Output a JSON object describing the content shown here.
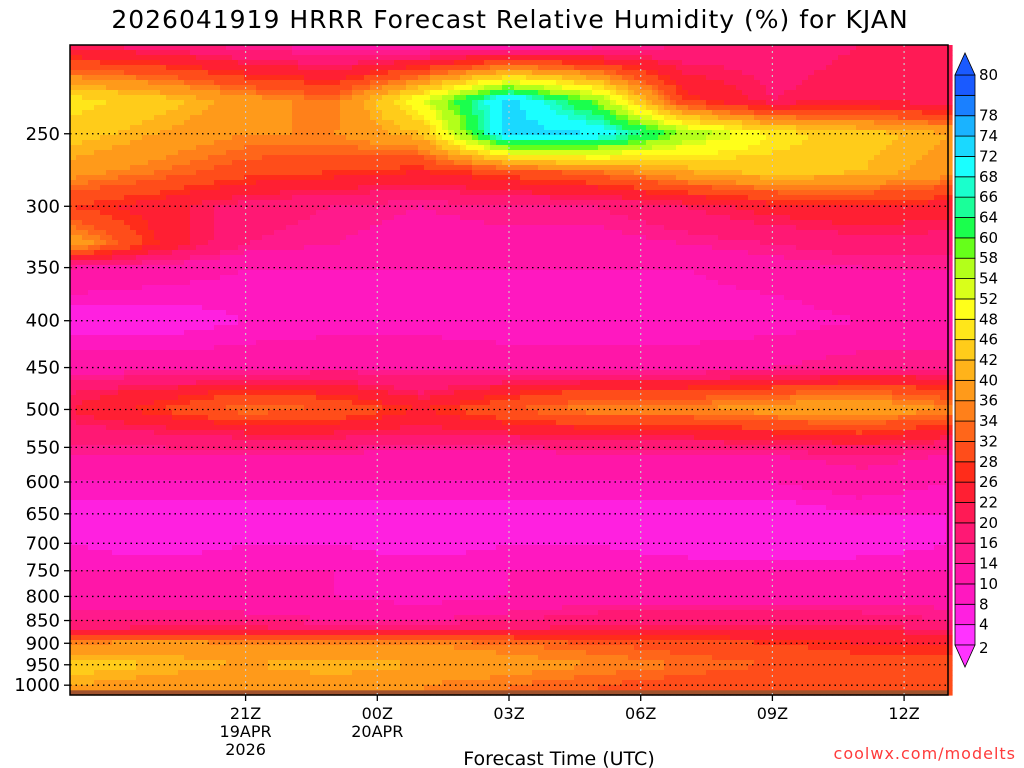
{
  "header": {
    "title": "2026041919 HRRR Forecast Relative Humidity (%) for KJAN"
  },
  "watermark": "coolwx.com/modelts",
  "chart_data": {
    "type": "heatmap",
    "title": "2026041919 HRRR Forecast Relative Humidity (%) for KJAN",
    "xlabel": "Forecast Time (UTC)",
    "ylabel": "",
    "x_unit": "hours after 2026041919 (UTC)",
    "xlim": [
      -2,
      18
    ],
    "y_unit": "hPa",
    "ylim": [
      1025,
      200
    ],
    "y_scale": "log",
    "grid": true,
    "x_ticks": [
      {
        "x": 2,
        "label": "21Z",
        "sub": [
          "19APR",
          "2026"
        ]
      },
      {
        "x": 5,
        "label": "00Z",
        "sub": [
          "20APR"
        ]
      },
      {
        "x": 8,
        "label": "03Z",
        "sub": []
      },
      {
        "x": 11,
        "label": "06Z",
        "sub": []
      },
      {
        "x": 14,
        "label": "09Z",
        "sub": []
      },
      {
        "x": 17,
        "label": "12Z",
        "sub": []
      }
    ],
    "y_ticks": [
      250,
      300,
      350,
      400,
      450,
      500,
      550,
      600,
      650,
      700,
      750,
      800,
      850,
      900,
      950,
      1000
    ],
    "x": [
      -2,
      0,
      2,
      4,
      6,
      8,
      10,
      12,
      14,
      16,
      18
    ],
    "y": [
      200,
      230,
      250,
      275,
      300,
      330,
      350,
      400,
      450,
      480,
      500,
      530,
      560,
      600,
      650,
      700,
      750,
      800,
      850,
      870,
      900,
      950,
      1000
    ],
    "values": [
      [
        20,
        18,
        14,
        12,
        10,
        10,
        12,
        16,
        18,
        20,
        20
      ],
      [
        48,
        44,
        38,
        34,
        52,
        74,
        58,
        28,
        20,
        22,
        20
      ],
      [
        44,
        40,
        36,
        36,
        42,
        74,
        72,
        58,
        48,
        44,
        40
      ],
      [
        38,
        34,
        30,
        28,
        26,
        30,
        34,
        40,
        44,
        42,
        38
      ],
      [
        28,
        24,
        18,
        16,
        14,
        16,
        16,
        20,
        24,
        26,
        24
      ],
      [
        40,
        26,
        16,
        14,
        12,
        12,
        12,
        14,
        16,
        18,
        18
      ],
      [
        14,
        12,
        10,
        10,
        10,
        10,
        10,
        10,
        12,
        14,
        14
      ],
      [
        6,
        6,
        8,
        8,
        8,
        8,
        8,
        8,
        8,
        10,
        10
      ],
      [
        12,
        12,
        12,
        14,
        14,
        12,
        12,
        12,
        14,
        16,
        16
      ],
      [
        20,
        24,
        28,
        26,
        20,
        26,
        30,
        30,
        32,
        34,
        30
      ],
      [
        22,
        28,
        34,
        32,
        26,
        32,
        36,
        36,
        38,
        40,
        36
      ],
      [
        18,
        20,
        22,
        22,
        20,
        22,
        24,
        24,
        26,
        28,
        24
      ],
      [
        14,
        14,
        14,
        14,
        12,
        12,
        14,
        14,
        14,
        16,
        14
      ],
      [
        10,
        10,
        10,
        10,
        10,
        10,
        10,
        10,
        10,
        12,
        10
      ],
      [
        6,
        6,
        6,
        6,
        6,
        6,
        6,
        6,
        6,
        8,
        8
      ],
      [
        8,
        6,
        8,
        8,
        6,
        8,
        8,
        6,
        4,
        6,
        8
      ],
      [
        10,
        10,
        10,
        10,
        10,
        10,
        10,
        10,
        10,
        10,
        10
      ],
      [
        10,
        12,
        10,
        10,
        8,
        10,
        12,
        12,
        12,
        12,
        12
      ],
      [
        16,
        16,
        16,
        14,
        14,
        16,
        18,
        18,
        18,
        18,
        16
      ],
      [
        20,
        22,
        22,
        20,
        20,
        20,
        22,
        22,
        22,
        22,
        20
      ],
      [
        36,
        38,
        36,
        36,
        36,
        34,
        32,
        30,
        28,
        26,
        26
      ],
      [
        44,
        42,
        40,
        42,
        40,
        38,
        36,
        34,
        32,
        30,
        30
      ],
      [
        40,
        38,
        36,
        38,
        36,
        34,
        32,
        30,
        28,
        28,
        28
      ]
    ],
    "colorbar": {
      "levels": [
        2,
        4,
        8,
        10,
        14,
        16,
        20,
        22,
        26,
        28,
        32,
        34,
        36,
        40,
        42,
        46,
        48,
        52,
        54,
        58,
        60,
        64,
        66,
        68,
        72,
        74,
        78,
        80
      ],
      "colors": [
        "#ff33ff",
        "#ff20e0",
        "#ff18c0",
        "#ff16a8",
        "#ff1a8c",
        "#ff1874",
        "#ff1a55",
        "#ff1f33",
        "#ff2c1a",
        "#ff4d1a",
        "#ff661a",
        "#ff801a",
        "#ff9a1a",
        "#ffb31a",
        "#ffcc1a",
        "#ffe61a",
        "#ffff1a",
        "#d9ff1a",
        "#b3ff1a",
        "#66ff1a",
        "#1aff4d",
        "#1aff99",
        "#1affcc",
        "#1affff",
        "#1ad9ff",
        "#1ab3ff",
        "#1a80ff",
        "#1a5aff"
      ]
    }
  }
}
